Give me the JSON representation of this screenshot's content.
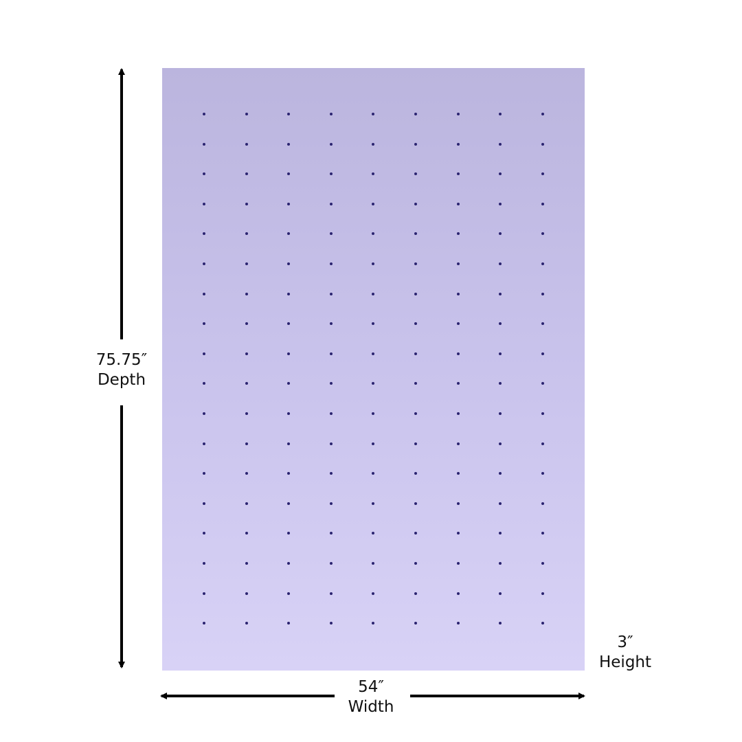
{
  "product": {
    "color": "#c9c3ec"
  },
  "dimensions": {
    "depth": {
      "value": "75.75″",
      "label": "Depth"
    },
    "width": {
      "value": "54″",
      "label": "Width"
    },
    "height": {
      "value": "3″",
      "label": "Height"
    }
  }
}
